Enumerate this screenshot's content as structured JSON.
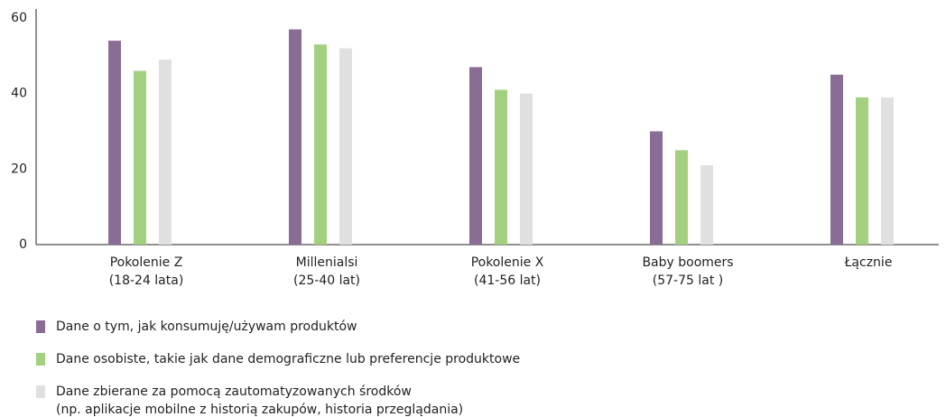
{
  "chart_data": {
    "type": "bar",
    "categories": [
      "Pokolenie Z\n(18-24 lata)",
      "Millenialsi\n(25-40 lat)",
      "Pokolenie X\n(41-56 lat)",
      "Baby boomers\n(57-75 lat )",
      "Łącznie"
    ],
    "series": [
      {
        "name": "Dane o tym, jak konsumuję/używam produktów",
        "color": "#8a6d94",
        "values": [
          54,
          57,
          47,
          30,
          45
        ]
      },
      {
        "name": "Dane osobiste, takie jak dane demograficzne lub preferencje produktowe",
        "color": "#a3d07f",
        "values": [
          46,
          53,
          41,
          25,
          39
        ]
      },
      {
        "name": "Dane zbierane za pomocą zautomatyzowanych środków\n(np. aplikacje mobilne z historią zakupów, historia przeglądania)",
        "color": "#e0e0e0",
        "values": [
          49,
          52,
          40,
          21,
          39
        ]
      }
    ],
    "ylim": [
      0,
      60
    ],
    "yticks": [
      0,
      20,
      40,
      60
    ],
    "grid": false,
    "legend": "bottom"
  }
}
